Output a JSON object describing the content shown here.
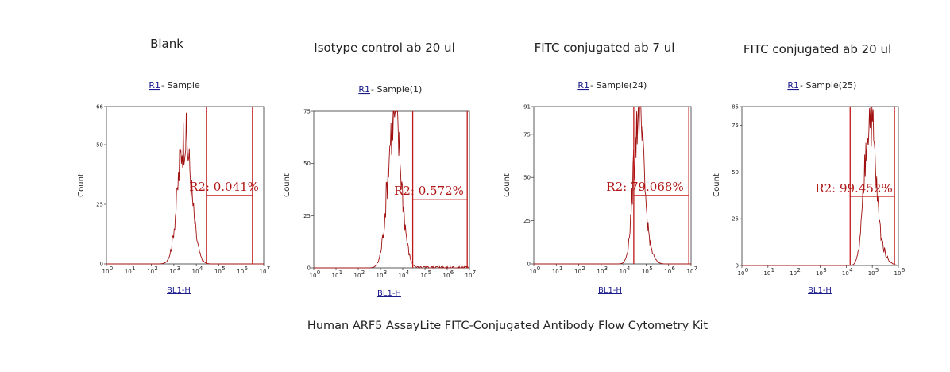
{
  "caption": "Human ARF5 AssayLite FITC-Conjugated Antibody Flow Cytometry Kit",
  "colors": {
    "histogram": "#a01010",
    "gate": "#c01818",
    "link": "#1a1a8c"
  },
  "chart_data": [
    {
      "type": "histogram",
      "title": "Blank",
      "subtitle_link": "R1",
      "subtitle_rest": " - Sample",
      "ylabel": "Count",
      "xlabel": "BL1-H",
      "x_log_decades": 7,
      "x_tick_labels": [
        "10",
        "10",
        "10",
        "10",
        "10",
        "10",
        "10",
        "10"
      ],
      "ylim": [
        0,
        66
      ],
      "yticks": [
        0,
        25,
        50,
        66
      ],
      "gate": {
        "name": "R2",
        "percent": "0.041%",
        "label": "R2: 0.041%",
        "start_decade": 4.45,
        "end_decade": 6.5
      },
      "peak": {
        "center_decade": 3.45,
        "width": 0.28,
        "max": 52
      }
    },
    {
      "type": "histogram",
      "title": "Isotype control ab 20 ul",
      "subtitle_link": "R1",
      "subtitle_rest": " - Sample(1)",
      "ylabel": "Count",
      "xlabel": "BL1-H",
      "x_log_decades": 7,
      "x_tick_labels": [
        "10",
        "10",
        "10",
        "10",
        "10",
        "10",
        "10",
        "10"
      ],
      "ylim": [
        0,
        75
      ],
      "yticks": [
        0,
        25,
        50,
        75
      ],
      "gate": {
        "name": "R2",
        "percent": "0.572%",
        "label": "R2: 0.572%",
        "start_decade": 4.45,
        "end_decade": 6.9
      },
      "peak": {
        "center_decade": 3.6,
        "width": 0.28,
        "max": 72
      }
    },
    {
      "type": "histogram",
      "title": "FITC conjugated ab 7 ul",
      "subtitle_link": "R1",
      "subtitle_rest": " - Sample(24)",
      "ylabel": "Count",
      "xlabel": "BL1-H",
      "x_log_decades": 7,
      "x_tick_labels": [
        "10",
        "10",
        "10",
        "10",
        "10",
        "10",
        "10",
        "10"
      ],
      "ylim": [
        0,
        91
      ],
      "yticks": [
        0,
        25,
        50,
        75,
        91
      ],
      "gate": {
        "name": "R2",
        "percent": "79.068%",
        "label": "R2: 79.068%",
        "start_decade": 4.45,
        "end_decade": 6.9
      },
      "peak": {
        "center_decade": 4.65,
        "width": 0.22,
        "max": 85
      }
    },
    {
      "type": "histogram",
      "title": "FITC conjugated ab 20 ul",
      "subtitle_link": "R1",
      "subtitle_rest": " - Sample(25)",
      "ylabel": "Count",
      "xlabel": "BL1-H",
      "x_log_decades": 6,
      "x_tick_labels": [
        "10",
        "10",
        "10",
        "10",
        "10",
        "10",
        "10"
      ],
      "ylim": [
        0,
        85
      ],
      "yticks": [
        0,
        25,
        50,
        75,
        85
      ],
      "gate": {
        "name": "R2",
        "percent": "99.452%",
        "label": "R2: 99.452%",
        "start_decade": 4.15,
        "end_decade": 5.85
      },
      "peak": {
        "center_decade": 4.9,
        "width": 0.2,
        "max": 80
      }
    }
  ]
}
